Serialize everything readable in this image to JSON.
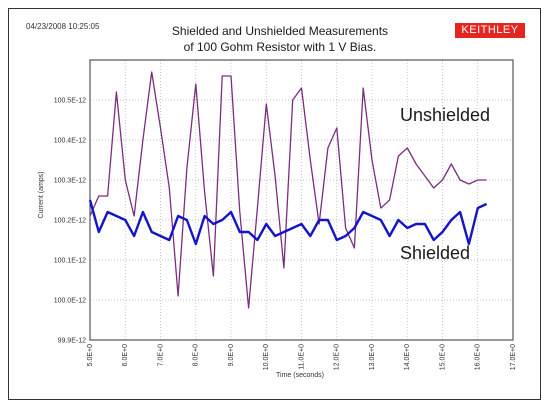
{
  "timestamp": "04/23/2008 10:25:05",
  "logo": "KEITHLEY",
  "colors": {
    "unshielded": "#7b2d7f",
    "shielded": "#1414c8",
    "grid": "#b0b0b0",
    "logo_bg": "#e3261f"
  },
  "chart_data": {
    "type": "line",
    "title_line1": "Shielded and Unshielded Measurements",
    "title_line2": "of 100 Gohm Resistor with 1 V Bias.",
    "xlabel": "Time (seconds)",
    "ylabel": "Current (amps)",
    "xlim": [
      5.0,
      17.0
    ],
    "ylim": [
      99.9,
      100.6
    ],
    "x_ticks": [
      5,
      6,
      7,
      8,
      9,
      10,
      11,
      12,
      13,
      14,
      15,
      16,
      17
    ],
    "x_tick_labels": [
      "5.0E+0",
      "6.0E+0",
      "7.0E+0",
      "8.0E+0",
      "9.0E+0",
      "10.0E+0",
      "11.0E+0",
      "12.0E+0",
      "13.0E+0",
      "14.0E+0",
      "15.0E+0",
      "16.0E+0",
      "17.0E+0"
    ],
    "y_ticks": [
      99.9,
      100.0,
      100.1,
      100.2,
      100.3,
      100.4,
      100.5
    ],
    "y_tick_labels": [
      "99.9E-12",
      "100.0E-12",
      "100.1E-12",
      "100.2E-12",
      "100.3E-12",
      "100.4E-12",
      "100.5E-12"
    ],
    "grid": true,
    "annotations": [
      "Unshielded",
      "Shielded"
    ],
    "series": [
      {
        "name": "Unshielded",
        "x": [
          5.0,
          5.25,
          5.5,
          5.75,
          6.0,
          6.25,
          6.5,
          6.75,
          7.0,
          7.25,
          7.5,
          7.75,
          8.0,
          8.25,
          8.5,
          8.75,
          9.0,
          9.25,
          9.5,
          9.75,
          10.0,
          10.25,
          10.5,
          10.75,
          11.0,
          11.25,
          11.5,
          11.75,
          12.0,
          12.25,
          12.5,
          12.75,
          13.0,
          13.25,
          13.5,
          13.75,
          14.0,
          14.25,
          14.5,
          14.75,
          15.0,
          15.25,
          15.5,
          15.75,
          16.0,
          16.25
        ],
        "y": [
          100.21,
          100.26,
          100.26,
          100.52,
          100.3,
          100.21,
          100.4,
          100.57,
          100.43,
          100.28,
          100.01,
          100.33,
          100.54,
          100.27,
          100.06,
          100.56,
          100.56,
          100.22,
          99.98,
          100.23,
          100.49,
          100.31,
          100.08,
          100.5,
          100.53,
          100.35,
          100.19,
          100.38,
          100.43,
          100.18,
          100.13,
          100.53,
          100.35,
          100.23,
          100.25,
          100.36,
          100.38,
          100.34,
          100.31,
          100.28,
          100.3,
          100.34,
          100.3,
          100.29,
          100.3,
          100.3
        ]
      },
      {
        "name": "Shielded",
        "x": [
          5.0,
          5.25,
          5.5,
          5.75,
          6.0,
          6.25,
          6.5,
          6.75,
          7.0,
          7.25,
          7.5,
          7.75,
          8.0,
          8.25,
          8.5,
          8.75,
          9.0,
          9.25,
          9.5,
          9.75,
          10.0,
          10.25,
          10.5,
          10.75,
          11.0,
          11.25,
          11.5,
          11.75,
          12.0,
          12.25,
          12.5,
          12.75,
          13.0,
          13.25,
          13.5,
          13.75,
          14.0,
          14.25,
          14.5,
          14.75,
          15.0,
          15.25,
          15.5,
          15.75,
          16.0,
          16.25
        ],
        "y": [
          100.25,
          100.17,
          100.22,
          100.21,
          100.2,
          100.16,
          100.22,
          100.17,
          100.16,
          100.15,
          100.21,
          100.2,
          100.14,
          100.21,
          100.19,
          100.2,
          100.22,
          100.17,
          100.17,
          100.15,
          100.19,
          100.16,
          100.17,
          100.18,
          100.19,
          100.16,
          100.2,
          100.2,
          100.15,
          100.16,
          100.18,
          100.22,
          100.21,
          100.2,
          100.16,
          100.2,
          100.18,
          100.19,
          100.19,
          100.15,
          100.17,
          100.2,
          100.22,
          100.14,
          100.23,
          100.24
        ]
      }
    ]
  }
}
